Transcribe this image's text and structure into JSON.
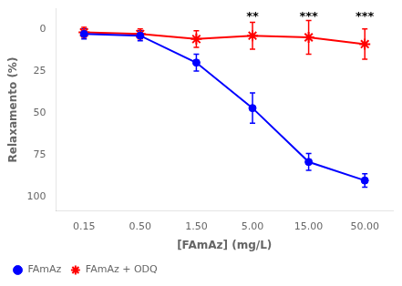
{
  "chart_data": {
    "type": "line",
    "xlabel": "[FAmAz] (mg/L)",
    "ylabel": "Relaxamento (%)",
    "categories": [
      "0.15",
      "0.50",
      "1.50",
      "5.00",
      "15.00",
      "50.00"
    ],
    "series": [
      {
        "name": "FAmAz",
        "color": "#0000FF",
        "marker": "circle",
        "values": [
          3,
          4,
          20,
          47,
          79,
          90
        ],
        "errors": [
          3,
          3,
          5,
          9,
          5,
          4
        ]
      },
      {
        "name": "FAmAz + ODQ",
        "color": "#FF0000",
        "marker": "star",
        "values": [
          2,
          3,
          6,
          4,
          5,
          9
        ],
        "errors": [
          3,
          3,
          5,
          8,
          10,
          9
        ]
      }
    ],
    "ylim": [
      108,
      -12
    ],
    "yticks": [
      0,
      25,
      50,
      75,
      100
    ],
    "grid": false,
    "legend": "lower left",
    "annotations": [
      {
        "x": "5.00",
        "y": -7,
        "text": "**"
      },
      {
        "x": "15.00",
        "y": -7,
        "text": "***"
      },
      {
        "x": "50.00",
        "y": -7,
        "text": "***"
      }
    ]
  }
}
